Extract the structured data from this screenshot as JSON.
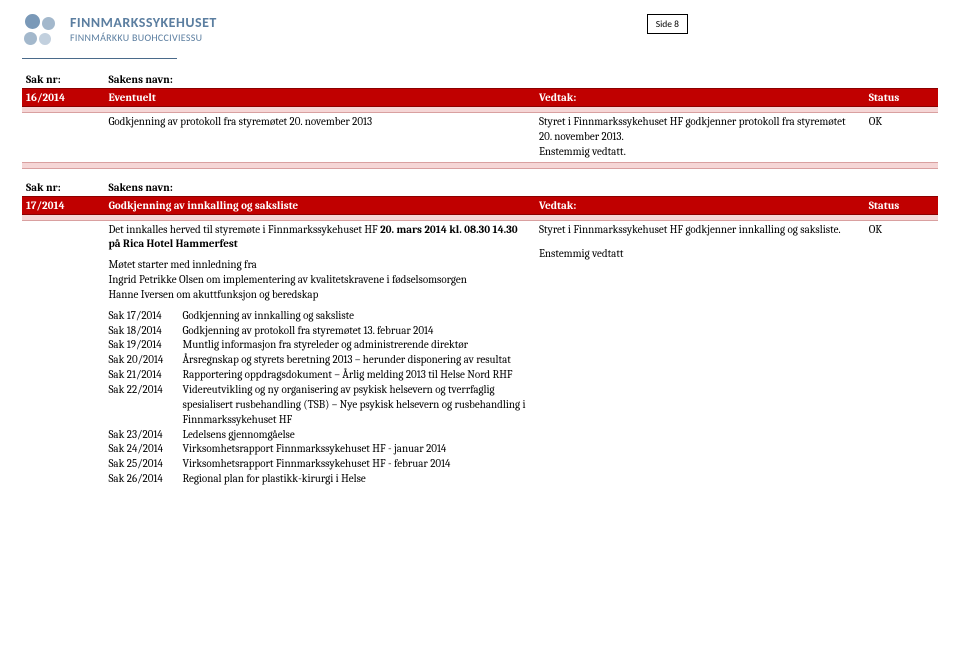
{
  "org": {
    "name": "FINNMARKSSYKEHUSET",
    "subname": "FINNMÁRKKU BUOHCCIVIESSU"
  },
  "side_label": "Side 8",
  "labels": {
    "saknr": "Sak nr:",
    "sakensnavn": "Sakens navn:",
    "vedtak": "Vedtak:",
    "status": "Status"
  },
  "sec1": {
    "id": "16/2014",
    "title": "Eventuelt",
    "left": "Godkjenning av protokoll fra styremøtet 20. november 2013",
    "right_l1": "Styret i Finnmarkssykehuset HF godkjenner protokoll fra styremøtet 20. november 2013.",
    "right_l2": "Enstemmig vedtatt.",
    "status": "OK"
  },
  "sec2": {
    "id": "17/2014",
    "title": "Godkjenning av innkalling og saksliste",
    "intro_prefix": "Det innkalles herved til styremøte i Finnmarkssykehuset HF ",
    "intro_bold": "20. mars 2014 kl. 08.30 14.30 på Rica Hotel Hammerfest",
    "meeting_intro_l1": "Møtet starter med innledning fra",
    "meeting_intro_l2": "Ingrid Petrikke Olsen om implementering av kvalitetskravene i fødselsomsorgen",
    "meeting_intro_l3": "Hanne Iversen om akuttfunksjon og beredskap",
    "items": [
      {
        "code": "Sak 17/2014",
        "text": "Godkjenning av innkalling og saksliste"
      },
      {
        "code": "Sak 18/2014",
        "text": "Godkjenning av protokoll fra styremøtet 13. februar 2014"
      },
      {
        "code": "Sak 19/2014",
        "text": "Muntlig informasjon fra styreleder og administrerende direktør"
      },
      {
        "code": "Sak 20/2014",
        "text": "Årsregnskap og styrets beretning 2013 – herunder disponering av resultat"
      },
      {
        "code": "Sak 21/2014",
        "text": "Rapportering oppdragsdokument – Årlig melding 2013 til Helse Nord RHF"
      },
      {
        "code": "Sak 22/2014",
        "text": "Videreutvikling og ny organisering av psykisk helsevern og tverrfaglig spesialisert rusbehandling (TSB) – Nye psykisk helsevern og rusbehandling i Finnmarkssykehuset HF"
      },
      {
        "code": "Sak 23/2014",
        "text": "Ledelsens gjennomgåelse"
      },
      {
        "code": "Sak 24/2014",
        "text": "Virksomhetsrapport Finnmarkssykehuset HF - januar 2014"
      },
      {
        "code": "Sak 25/2014",
        "text": "Virksomhetsrapport Finnmarkssykehuset HF - februar 2014"
      },
      {
        "code": "Sak 26/2014",
        "text": "Regional plan for plastikk-kirurgi i Helse"
      }
    ],
    "right_l1": "Styret i Finnmarkssykehuset HF godkjenner innkalling og saksliste.",
    "right_l2": "Enstemmig vedtatt",
    "status": "OK"
  }
}
